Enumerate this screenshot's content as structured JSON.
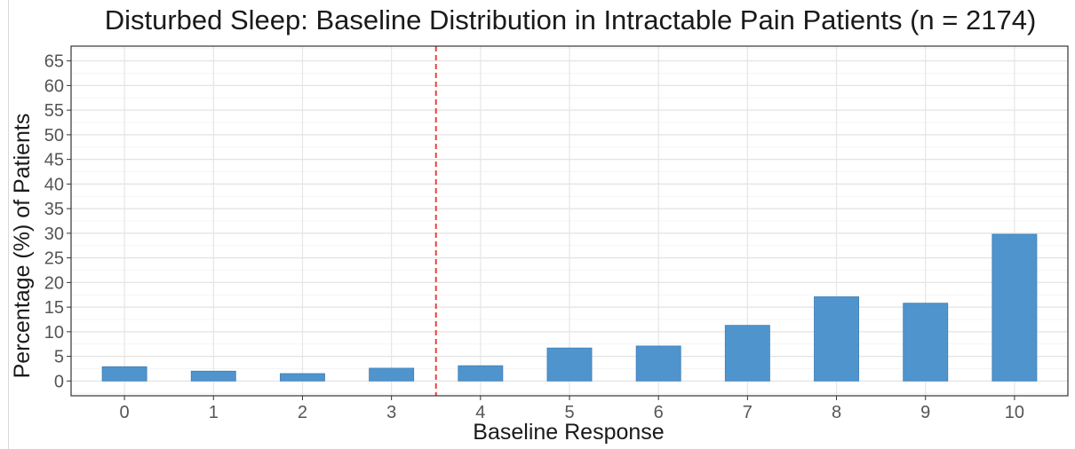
{
  "chart_data": {
    "type": "bar",
    "title": "Disturbed Sleep: Baseline Distribution in Intractable Pain Patients (n = 2174)",
    "xlabel": "Baseline Response",
    "ylabel": "Percentage (%) of Patients",
    "categories": [
      "0",
      "1",
      "2",
      "3",
      "4",
      "5",
      "6",
      "7",
      "8",
      "9",
      "10"
    ],
    "values": [
      2.9,
      2.0,
      1.5,
      2.6,
      3.1,
      6.7,
      7.1,
      11.3,
      17.1,
      15.8,
      29.8
    ],
    "ylim": [
      -3,
      68
    ],
    "yticks": [
      0,
      5,
      10,
      15,
      20,
      25,
      30,
      35,
      40,
      45,
      50,
      55,
      60,
      65
    ],
    "reference_line": {
      "between": [
        "3",
        "4"
      ],
      "style": "dashed",
      "color": "#e8423f"
    },
    "bar_color": "#4f94cd",
    "grid": true,
    "legend": "none"
  }
}
